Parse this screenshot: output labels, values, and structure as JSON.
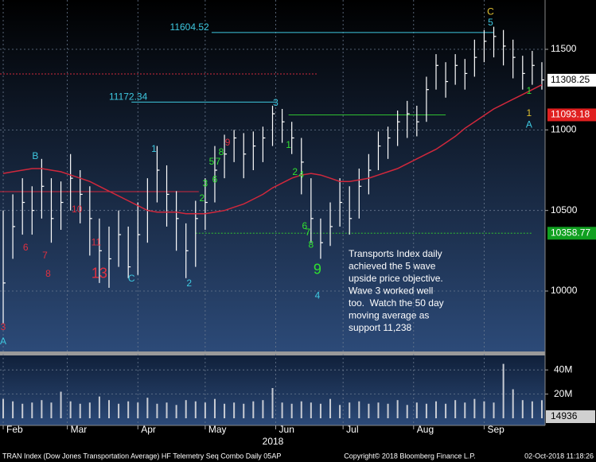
{
  "chart_data": {
    "type": "ohlc",
    "x": [
      0,
      3,
      6,
      9,
      12,
      15,
      18,
      21,
      24,
      27,
      30,
      33,
      36,
      39,
      42,
      45,
      48,
      51,
      54,
      57,
      60,
      63,
      66,
      69,
      72,
      75,
      78,
      81,
      84,
      87,
      90,
      93,
      96,
      99,
      102,
      105,
      108,
      111,
      114,
      117,
      120,
      123,
      126,
      129,
      132,
      135,
      138,
      141,
      144,
      147,
      150,
      153,
      156,
      159,
      162,
      165,
      168
    ],
    "high": [
      10500,
      10600,
      10700,
      10650,
      10820,
      10700,
      10680,
      10850,
      10750,
      10650,
      10450,
      10400,
      10500,
      10400,
      10550,
      10700,
      10900,
      10780,
      10620,
      10420,
      10560,
      10700,
      10900,
      10970,
      11000,
      10980,
      10990,
      11020,
      11150,
      11130,
      11050,
      10950,
      10700,
      10450,
      10550,
      10700,
      10650,
      10760,
      10850,
      10990,
      11020,
      11120,
      11180,
      11150,
      11330,
      11470,
      11420,
      11470,
      11440,
      11560,
      11620,
      11640,
      11620,
      11560,
      11460,
      11490,
      11420
    ],
    "low": [
      9800,
      10200,
      10350,
      10350,
      10450,
      10300,
      10380,
      10500,
      10420,
      10220,
      10050,
      10020,
      10150,
      10080,
      10100,
      10300,
      10550,
      10400,
      10250,
      10080,
      10150,
      10380,
      10550,
      10700,
      10800,
      10700,
      10750,
      10800,
      10900,
      10920,
      10850,
      10600,
      10300,
      10200,
      10280,
      10400,
      10350,
      10450,
      10600,
      10750,
      10820,
      10900,
      10950,
      10960,
      11050,
      11250,
      11200,
      11280,
      11250,
      11330,
      11420,
      11450,
      11400,
      11320,
      11250,
      11280,
      11250
    ],
    "close": [
      10050,
      10400,
      10550,
      10500,
      10650,
      10450,
      10550,
      10700,
      10600,
      10450,
      10250,
      10200,
      10350,
      10150,
      10350,
      10500,
      10750,
      10600,
      10450,
      10250,
      10450,
      10550,
      10750,
      10850,
      10950,
      10850,
      10900,
      10950,
      11100,
      11050,
      10950,
      10800,
      10450,
      10300,
      10400,
      10550,
      10450,
      10650,
      10750,
      10900,
      10950,
      11050,
      11100,
      11050,
      11250,
      11400,
      11300,
      11400,
      11350,
      11450,
      11550,
      11580,
      11520,
      11450,
      11350,
      11400,
      11310
    ],
    "bar_color": "#ffffff",
    "ma": [
      10730,
      10740,
      10750,
      10760,
      10760,
      10750,
      10740,
      10720,
      10700,
      10680,
      10650,
      10620,
      10590,
      10560,
      10530,
      10500,
      10490,
      10490,
      10490,
      10480,
      10480,
      10480,
      10490,
      10500,
      10520,
      10540,
      10570,
      10600,
      10640,
      10670,
      10700,
      10720,
      10730,
      10720,
      10700,
      10680,
      10680,
      10690,
      10700,
      10720,
      10740,
      10760,
      10790,
      10820,
      10850,
      10880,
      10920,
      10960,
      11010,
      11050,
      11090,
      11130,
      11160,
      11190,
      11220,
      11250,
      11280
    ],
    "ma_color": "#d0283c",
    "xlim": [
      -1,
      169
    ],
    "ylim": [
      9625,
      11806
    ],
    "xticks": [
      {
        "value": 0,
        "label": "Feb"
      },
      {
        "value": 20,
        "label": "Mar"
      },
      {
        "value": 42,
        "label": "Apr"
      },
      {
        "value": 63,
        "label": "May"
      },
      {
        "value": 85,
        "label": "Jun"
      },
      {
        "value": 106,
        "label": "Jul"
      },
      {
        "value": 128,
        "label": "Aug"
      },
      {
        "value": 150,
        "label": "Sep"
      }
    ],
    "year_label": "2018",
    "yticks": [
      10000,
      10500,
      11000,
      11500
    ],
    "grid": true,
    "levels": [
      {
        "value": 11604.52,
        "color": "#3ec8e0",
        "from": 65,
        "to": 153,
        "style": "solid",
        "label_at": 52
      },
      {
        "value": 11172.34,
        "color": "#3ec8e0",
        "from": 40,
        "to": 85,
        "style": "solid",
        "label_at": 33
      },
      {
        "value": 11347,
        "color": "#d0283c",
        "from": -1,
        "to": 98,
        "style": "dotted"
      },
      {
        "value": 10617,
        "color": "#d0283c",
        "from": -1,
        "to": 61,
        "style": "solid"
      },
      {
        "value": 11093.18,
        "color": "#30c030",
        "from": 89,
        "to": 138,
        "style": "solid"
      },
      {
        "value": 10358.77,
        "color": "#30c030",
        "from": 60,
        "to": 165,
        "style": "dotted"
      }
    ],
    "price_labels": [
      {
        "value": 11308.25,
        "bg": "#ffffff",
        "fg": "#000000"
      },
      {
        "value": 11093.18,
        "bg": "#e02020",
        "fg": "#ffffff"
      },
      {
        "value": 10358.77,
        "bg": "#10a020",
        "fg": "#ffffff"
      }
    ],
    "marks": [
      {
        "text": "3",
        "x": 0,
        "y": 9773,
        "color": "#e03040"
      },
      {
        "text": "A",
        "x": 0,
        "y": 9685,
        "color": "#3ec8e0"
      },
      {
        "text": "B",
        "x": 10,
        "y": 10834,
        "color": "#3ec8e0"
      },
      {
        "text": "6",
        "x": 7,
        "y": 10267,
        "color": "#e03040"
      },
      {
        "text": "7",
        "x": 13,
        "y": 10217,
        "color": "#e03040"
      },
      {
        "text": "8",
        "x": 14,
        "y": 10104,
        "color": "#e03040"
      },
      {
        "text": "10",
        "x": 23,
        "y": 10505,
        "color": "#e03040"
      },
      {
        "text": "11",
        "x": 29,
        "y": 10300,
        "color": "#e03040"
      },
      {
        "text": "13",
        "x": 30,
        "y": 10104,
        "color": "#e03040"
      },
      {
        "text": "C",
        "x": 40,
        "y": 10074,
        "color": "#3ec8e0"
      },
      {
        "text": "1",
        "x": 47,
        "y": 10878,
        "color": "#3ec8e0"
      },
      {
        "text": "2",
        "x": 58,
        "y": 10045,
        "color": "#3ec8e0"
      },
      {
        "text": "2",
        "x": 62,
        "y": 10573,
        "color": "#30e030"
      },
      {
        "text": "3",
        "x": 63,
        "y": 10665,
        "color": "#30e030"
      },
      {
        "text": "6",
        "x": 66,
        "y": 10690,
        "color": "#30e030"
      },
      {
        "text": "5",
        "x": 65,
        "y": 10800,
        "color": "#30e030"
      },
      {
        "text": "7",
        "x": 67,
        "y": 10800,
        "color": "#30e030"
      },
      {
        "text": "8",
        "x": 68,
        "y": 10860,
        "color": "#30e030"
      },
      {
        "text": "9",
        "x": 70,
        "y": 10918,
        "color": "#e03040"
      },
      {
        "text": "3",
        "x": 85,
        "y": 11165,
        "color": "#3ec8e0"
      },
      {
        "text": "1",
        "x": 89,
        "y": 10903,
        "color": "#30e030"
      },
      {
        "text": "2",
        "x": 91,
        "y": 10735,
        "color": "#30e030"
      },
      {
        "text": "4",
        "x": 93,
        "y": 10720,
        "color": "#30e030"
      },
      {
        "text": "6",
        "x": 94,
        "y": 10400,
        "color": "#30e030"
      },
      {
        "text": "7",
        "x": 95,
        "y": 10360,
        "color": "#30e030"
      },
      {
        "text": "8",
        "x": 96,
        "y": 10285,
        "color": "#30e030"
      },
      {
        "text": "9",
        "x": 98,
        "y": 10130,
        "color": "#30e030"
      },
      {
        "text": "4",
        "x": 98,
        "y": 9970,
        "color": "#3ec8e0"
      },
      {
        "text": "C",
        "x": 152,
        "y": 11730,
        "color": "#e0c030"
      },
      {
        "text": "5",
        "x": 152,
        "y": 11663,
        "color": "#3ec8e0"
      },
      {
        "text": "1",
        "x": 164,
        "y": 11240,
        "color": "#30e030"
      },
      {
        "text": "1",
        "x": 164,
        "y": 11100,
        "color": "#e0c030"
      },
      {
        "text": "A",
        "x": 164,
        "y": 11030,
        "color": "#3ec8e0"
      }
    ],
    "note": [
      "Transports Index daily",
      "achieved the 5 wave",
      "upside price objective.",
      "Wave 3 worked well",
      "too.  Watch the 50 day",
      "moving average as",
      "support 11,238"
    ],
    "volume": {
      "values": [
        16000,
        14000,
        12000,
        13000,
        15000,
        13000,
        22000,
        14000,
        12000,
        13000,
        18000,
        15000,
        12000,
        14000,
        13000,
        17000,
        12000,
        13000,
        11000,
        15000,
        14000,
        13000,
        16000,
        12000,
        13000,
        12000,
        14000,
        15000,
        25000,
        13000,
        12000,
        14000,
        13000,
        12000,
        16000,
        11000,
        13000,
        14000,
        12000,
        13000,
        12000,
        15000,
        11000,
        13000,
        12000,
        14000,
        12000,
        15000,
        13000,
        16000,
        14000,
        13000,
        45000,
        24000,
        15000,
        14000,
        14936
      ],
      "ylim": [
        0,
        50000
      ],
      "yticks": [
        {
          "value": 20000,
          "label": "20M"
        },
        {
          "value": 40000,
          "label": "40M"
        }
      ]
    },
    "footer": {
      "left": "TRAN Index (Dow Jones Transportation Average) HF Telemetry Seq Combo  Daily 05AP",
      "center": "Copyright© 2018 Bloomberg Finance L.P.",
      "right": "02-Oct-2018 11:18:26"
    }
  }
}
